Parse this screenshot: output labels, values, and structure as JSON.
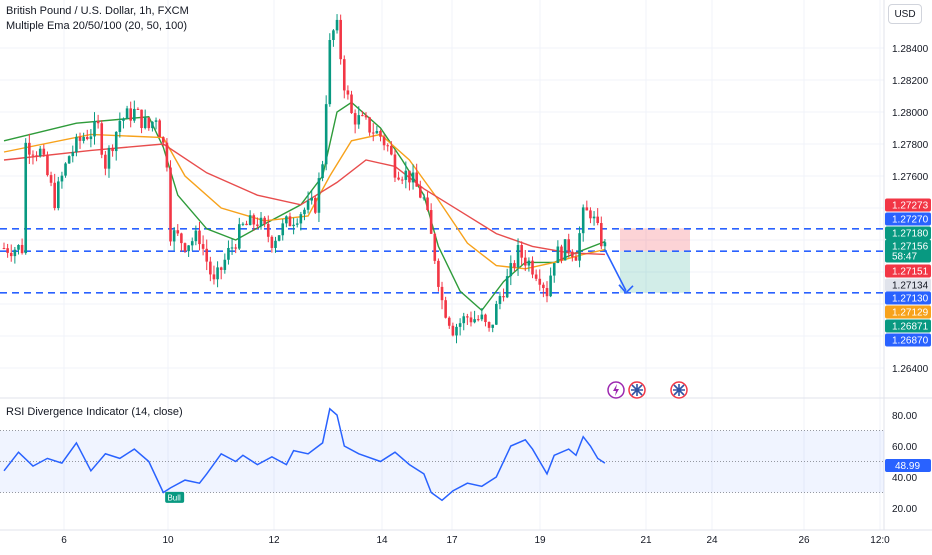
{
  "legend": {
    "title": "British Pound / U.S. Dollar, 1h, FXCM",
    "indicator": "Multiple Ema 20/50/100 (20, 50, 100)",
    "rsi": "RSI Divergence Indicator (14, close)"
  },
  "currency_button": "USD",
  "price_axis": {
    "ticks": [
      "1.28400",
      "1.28200",
      "1.28000",
      "1.27800",
      "1.27600",
      "1.26400"
    ],
    "badges": [
      {
        "label": "1.27273",
        "color": "#f23645"
      },
      {
        "label": "1.27270",
        "color": "#2962ff"
      },
      {
        "label": "1.27180",
        "color": "#089981"
      },
      {
        "label": "1.27156",
        "color": "#089981"
      },
      {
        "label": "58:47",
        "color": "#089981"
      },
      {
        "label": "1.27151",
        "color": "#f23645"
      },
      {
        "label": "1.27134",
        "color": "#e0e3eb"
      },
      {
        "label": "1.27130",
        "color": "#2962ff"
      },
      {
        "label": "1.27129",
        "color": "#f7a21b"
      },
      {
        "label": "1.26871",
        "color": "#089981"
      },
      {
        "label": "1.26870",
        "color": "#2962ff"
      }
    ]
  },
  "rsi_axis": {
    "ticks": [
      "80.00",
      "60.00",
      "40.00",
      "20.00"
    ],
    "value": "48.99"
  },
  "time_axis": {
    "ticks": [
      "6",
      "10",
      "12",
      "14",
      "17",
      "19",
      "21",
      "24",
      "26",
      "12:0"
    ]
  },
  "bull_label": "Bull",
  "colors": {
    "up": "#089981",
    "down": "#f23645",
    "ema20": "#2e9b3a",
    "ema50": "#f7a21b",
    "ema100": "#e84d4d",
    "hline": "#2962ff",
    "rsi": "#2962ff"
  },
  "chart_data": {
    "type": "candlestick",
    "symbol": "GBPUSD",
    "timeframe": "1h",
    "y_range": [
      1.263,
      1.286
    ],
    "horizontal_levels": [
      1.2727,
      1.2713,
      1.2687
    ],
    "trade_box": {
      "entry": 1.2713,
      "stop": 1.27273,
      "target": 1.2687
    },
    "anchors": [
      {
        "t": 6,
        "p": 1.278
      },
      {
        "t": 10,
        "p": 1.2775
      },
      {
        "t": 14,
        "p": 1.2745
      },
      {
        "t": 18,
        "p": 1.2773
      },
      {
        "t": 22,
        "p": 1.2785
      },
      {
        "t": 26,
        "p": 1.279
      },
      {
        "t": 28,
        "p": 1.2768
      },
      {
        "t": 32,
        "p": 1.2795
      },
      {
        "t": 36,
        "p": 1.28
      },
      {
        "t": 40,
        "p": 1.279
      },
      {
        "t": 42,
        "p": 1.2798
      },
      {
        "t": 45,
        "p": 1.277
      },
      {
        "t": 46,
        "p": 1.2725
      },
      {
        "t": 50,
        "p": 1.2718
      },
      {
        "t": 54,
        "p": 1.2722
      },
      {
        "t": 58,
        "p": 1.2692
      },
      {
        "t": 62,
        "p": 1.2712
      },
      {
        "t": 66,
        "p": 1.2728
      },
      {
        "t": 70,
        "p": 1.2732
      },
      {
        "t": 74,
        "p": 1.272
      },
      {
        "t": 78,
        "p": 1.273
      },
      {
        "t": 82,
        "p": 1.2738
      },
      {
        "t": 86,
        "p": 1.2742
      },
      {
        "t": 88,
        "p": 1.277
      },
      {
        "t": 90,
        "p": 1.2848
      },
      {
        "t": 92,
        "p": 1.2852
      },
      {
        "t": 94,
        "p": 1.2818
      },
      {
        "t": 96,
        "p": 1.2798
      },
      {
        "t": 100,
        "p": 1.2792
      },
      {
        "t": 104,
        "p": 1.2785
      },
      {
        "t": 106,
        "p": 1.2778
      },
      {
        "t": 108,
        "p": 1.2765
      },
      {
        "t": 112,
        "p": 1.276
      },
      {
        "t": 116,
        "p": 1.2745
      },
      {
        "t": 119,
        "p": 1.271
      },
      {
        "t": 121,
        "p": 1.2682
      },
      {
        "t": 124,
        "p": 1.2665
      },
      {
        "t": 128,
        "p": 1.2672
      },
      {
        "t": 132,
        "p": 1.267
      },
      {
        "t": 134,
        "p": 1.2662
      },
      {
        "t": 137,
        "p": 1.2685
      },
      {
        "t": 140,
        "p": 1.27
      },
      {
        "t": 142,
        "p": 1.2712
      },
      {
        "t": 145,
        "p": 1.2706
      },
      {
        "t": 148,
        "p": 1.2698
      },
      {
        "t": 150,
        "p": 1.2688
      },
      {
        "t": 152,
        "p": 1.271
      },
      {
        "t": 156,
        "p": 1.2716
      },
      {
        "t": 158,
        "p": 1.2712
      },
      {
        "t": 160,
        "p": 1.2735
      },
      {
        "t": 162,
        "p": 1.2738
      },
      {
        "t": 164,
        "p": 1.2725
      },
      {
        "t": 166,
        "p": 1.2715
      }
    ],
    "ema": {
      "ema20": [
        [
          0,
          1.2782
        ],
        [
          20,
          1.2793
        ],
        [
          40,
          1.2797
        ],
        [
          44,
          1.2778
        ],
        [
          48,
          1.2748
        ],
        [
          56,
          1.2727
        ],
        [
          64,
          1.272
        ],
        [
          72,
          1.273
        ],
        [
          82,
          1.2742
        ],
        [
          88,
          1.276
        ],
        [
          92,
          1.28
        ],
        [
          96,
          1.2806
        ],
        [
          104,
          1.279
        ],
        [
          110,
          1.277
        ],
        [
          116,
          1.2748
        ],
        [
          120,
          1.2716
        ],
        [
          126,
          1.2688
        ],
        [
          132,
          1.2676
        ],
        [
          138,
          1.2694
        ],
        [
          144,
          1.2706
        ],
        [
          152,
          1.2706
        ],
        [
          158,
          1.2712
        ],
        [
          166,
          1.2719
        ]
      ],
      "ema50": [
        [
          0,
          1.2775
        ],
        [
          24,
          1.2786
        ],
        [
          44,
          1.2784
        ],
        [
          50,
          1.276
        ],
        [
          60,
          1.274
        ],
        [
          72,
          1.2732
        ],
        [
          84,
          1.2735
        ],
        [
          90,
          1.276
        ],
        [
          96,
          1.2782
        ],
        [
          104,
          1.2786
        ],
        [
          112,
          1.277
        ],
        [
          120,
          1.2745
        ],
        [
          128,
          1.2718
        ],
        [
          136,
          1.2704
        ],
        [
          144,
          1.2702
        ],
        [
          152,
          1.2706
        ],
        [
          160,
          1.2711
        ],
        [
          166,
          1.2714
        ]
      ],
      "ema100": [
        [
          0,
          1.277
        ],
        [
          24,
          1.2776
        ],
        [
          44,
          1.278
        ],
        [
          56,
          1.2762
        ],
        [
          70,
          1.2748
        ],
        [
          82,
          1.2742
        ],
        [
          92,
          1.2756
        ],
        [
          100,
          1.277
        ],
        [
          108,
          1.2766
        ],
        [
          116,
          1.2752
        ],
        [
          126,
          1.2738
        ],
        [
          136,
          1.2724
        ],
        [
          146,
          1.2716
        ],
        [
          156,
          1.2712
        ],
        [
          166,
          1.2711
        ]
      ]
    },
    "rsi": {
      "y_range": [
        15,
        90
      ],
      "overbought": 70,
      "oversold": 30,
      "mid": 50,
      "values": [
        [
          0,
          44
        ],
        [
          4,
          56
        ],
        [
          8,
          47
        ],
        [
          12,
          52
        ],
        [
          16,
          49
        ],
        [
          20,
          62
        ],
        [
          24,
          44
        ],
        [
          28,
          55
        ],
        [
          32,
          52
        ],
        [
          36,
          58
        ],
        [
          40,
          50
        ],
        [
          44,
          30
        ],
        [
          46,
          33
        ],
        [
          50,
          38
        ],
        [
          54,
          36
        ],
        [
          56,
          42
        ],
        [
          60,
          55
        ],
        [
          64,
          50
        ],
        [
          66,
          54
        ],
        [
          70,
          48
        ],
        [
          74,
          53
        ],
        [
          78,
          48
        ],
        [
          80,
          57
        ],
        [
          84,
          55
        ],
        [
          88,
          62
        ],
        [
          90,
          84
        ],
        [
          92,
          80
        ],
        [
          94,
          60
        ],
        [
          98,
          55
        ],
        [
          104,
          50
        ],
        [
          108,
          56
        ],
        [
          112,
          48
        ],
        [
          116,
          42
        ],
        [
          118,
          30
        ],
        [
          121,
          25
        ],
        [
          124,
          31
        ],
        [
          128,
          36
        ],
        [
          132,
          34
        ],
        [
          136,
          40
        ],
        [
          140,
          60
        ],
        [
          144,
          64
        ],
        [
          146,
          58
        ],
        [
          150,
          42
        ],
        [
          152,
          54
        ],
        [
          156,
          58
        ],
        [
          158,
          54
        ],
        [
          160,
          66
        ],
        [
          162,
          60
        ],
        [
          164,
          52
        ],
        [
          166,
          49
        ]
      ]
    },
    "bull_marker": {
      "t": 47,
      "rsi": 33
    }
  }
}
